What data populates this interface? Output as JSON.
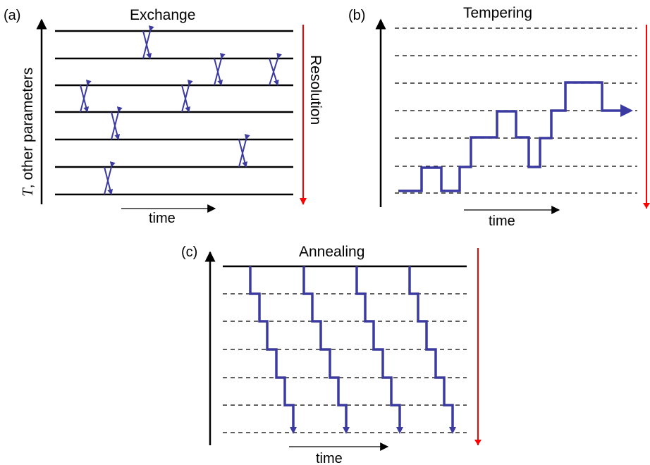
{
  "colors": {
    "path": "#3a3aa0",
    "resolution_arrow": "#ff0000",
    "axis": "#000000"
  },
  "panels": {
    "a": {
      "tag": "(a)",
      "title": "Exchange",
      "time_label": "time",
      "ylabel_symbol": "T",
      "ylabel_text": ", other parameters",
      "side_label": "Resolution"
    },
    "b": {
      "tag": "(b)",
      "title": "Tempering",
      "time_label": "time"
    },
    "c": {
      "tag": "(c)",
      "title": "Annealing",
      "time_label": "time"
    }
  }
}
